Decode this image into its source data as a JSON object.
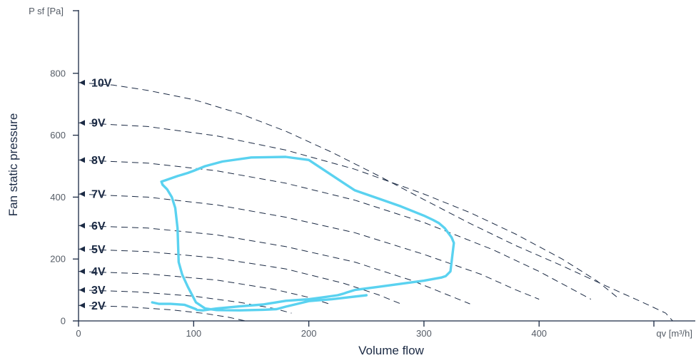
{
  "chart_data": {
    "type": "line",
    "y_corner_label": "P sf [Pa]",
    "x_corner_label": "qv [m³/h]",
    "xlabel": "Volume flow",
    "ylabel": "Fan static pressure",
    "x_ticks": [
      "0",
      "100",
      "200",
      "300",
      "400"
    ],
    "y_ticks": [
      "0",
      "200",
      "400",
      "600",
      "800"
    ],
    "xlim": [
      0,
      530
    ],
    "ylim": [
      0,
      1000
    ],
    "grid": false,
    "colors": {
      "curves": "#1b2a44",
      "envelope": "#5ad2f0",
      "axis": "#1b2a44"
    },
    "series": [
      {
        "name": "10V",
        "x": [
          0,
          30,
          60,
          100,
          140,
          180,
          220,
          260,
          300,
          340,
          380,
          420,
          460,
          490,
          510,
          516
        ],
        "y": [
          770,
          762,
          745,
          715,
          670,
          613,
          545,
          470,
          392,
          315,
          243,
          178,
          110,
          60,
          25,
          0
        ]
      },
      {
        "name": "9V",
        "x": [
          0,
          60,
          120,
          180,
          240,
          300,
          340,
          380,
          420,
          450,
          470
        ],
        "y": [
          640,
          628,
          598,
          552,
          490,
          410,
          350,
          280,
          200,
          130,
          70
        ]
      },
      {
        "name": "8V",
        "x": [
          0,
          60,
          120,
          180,
          240,
          300,
          360,
          400,
          430,
          445
        ],
        "y": [
          520,
          510,
          485,
          445,
          390,
          318,
          230,
          160,
          100,
          70
        ]
      },
      {
        "name": "7V",
        "x": [
          0,
          60,
          120,
          180,
          240,
          300,
          350,
          380,
          400
        ],
        "y": [
          410,
          400,
          375,
          335,
          285,
          215,
          150,
          100,
          70
        ]
      },
      {
        "name": "6V",
        "x": [
          0,
          60,
          120,
          180,
          240,
          290,
          320,
          340
        ],
        "y": [
          308,
          300,
          278,
          240,
          190,
          130,
          85,
          55
        ]
      },
      {
        "name": "5V",
        "x": [
          0,
          60,
          120,
          180,
          230,
          260,
          280
        ],
        "y": [
          232,
          224,
          203,
          168,
          122,
          85,
          55
        ]
      },
      {
        "name": "4V",
        "x": [
          0,
          60,
          120,
          170,
          200,
          220
        ],
        "y": [
          160,
          152,
          132,
          102,
          76,
          52
        ]
      },
      {
        "name": "3V",
        "x": [
          0,
          50,
          100,
          140,
          170,
          185
        ],
        "y": [
          100,
          94,
          80,
          60,
          40,
          25
        ]
      },
      {
        "name": "2V",
        "x": [
          0,
          40,
          80,
          110,
          130,
          145
        ],
        "y": [
          50,
          46,
          36,
          24,
          12,
          0
        ]
      }
    ],
    "envelope": {
      "x": [
        64,
        70,
        80,
        92,
        102,
        103,
        108,
        120,
        140,
        160,
        170,
        180,
        200,
        210,
        225,
        230,
        233,
        240,
        260,
        280,
        300,
        315,
        319,
        323,
        326,
        324,
        318,
        313,
        308,
        300,
        280,
        260,
        240,
        226,
        200,
        180,
        150,
        125,
        110,
        100,
        95,
        86,
        76,
        72,
        73,
        77,
        81,
        84,
        86,
        87,
        90,
        95,
        102,
        110,
        120,
        140,
        160,
        172,
        180,
        190,
        200,
        220,
        250
      ],
      "y": [
        60,
        55,
        55,
        52,
        38,
        35,
        34,
        40,
        47,
        53,
        59,
        65,
        70,
        75,
        83,
        88,
        92,
        100,
        110,
        120,
        130,
        140,
        145,
        160,
        252,
        270,
        300,
        316,
        326,
        340,
        370,
        396,
        422,
        456,
        520,
        530,
        528,
        515,
        500,
        485,
        478,
        468,
        455,
        450,
        440,
        425,
        400,
        365,
        300,
        190,
        150,
        110,
        60,
        40,
        35,
        34,
        36,
        38,
        46,
        55,
        64,
        70,
        83
      ]
    },
    "labels_x": 0
  }
}
